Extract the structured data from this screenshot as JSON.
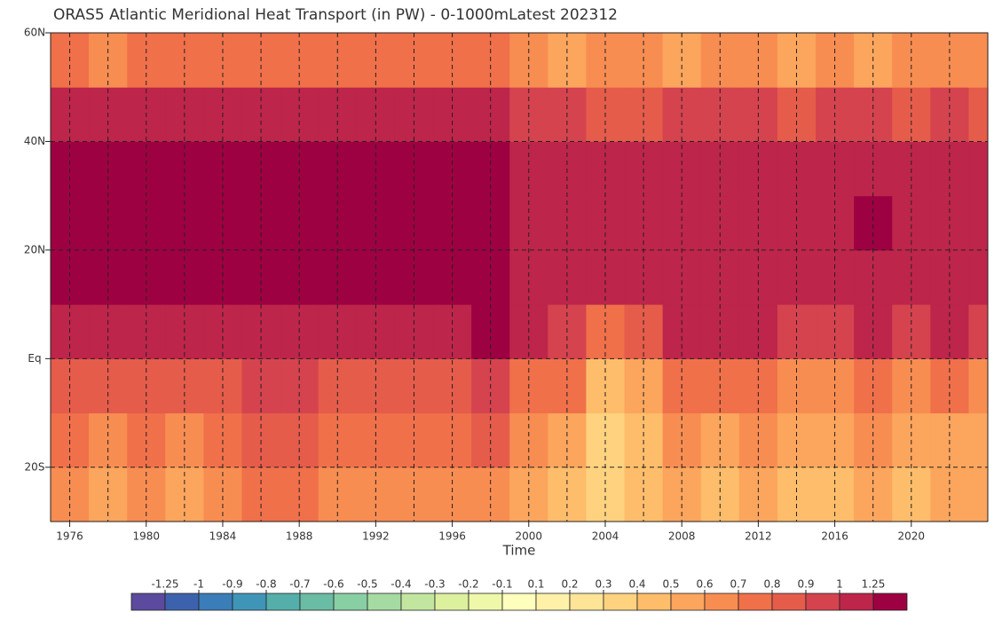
{
  "chart_data": {
    "type": "contour",
    "title": "ORAS5 Atlantic Meridional Heat Transport (in PW) - 0-1000mLatest 202312",
    "x_label": "Time",
    "x": [
      1975,
      1977,
      1979,
      1981,
      1983,
      1985,
      1987,
      1989,
      1991,
      1993,
      1995,
      1997,
      1999,
      2001,
      2003,
      2005,
      2007,
      2009,
      2011,
      2013,
      2015,
      2017,
      2019,
      2021,
      2023
    ],
    "y": [
      -30,
      -20,
      -10,
      0,
      10,
      20,
      30,
      40,
      50
    ],
    "z": [
      [
        0.6,
        0.5,
        0.6,
        0.55,
        0.6,
        0.7,
        0.75,
        0.6,
        0.6,
        0.65,
        0.6,
        0.65,
        0.5,
        0.45,
        0.35,
        0.4,
        0.5,
        0.45,
        0.5,
        0.45,
        0.45,
        0.5,
        0.45,
        0.5,
        0.5
      ],
      [
        0.75,
        0.65,
        0.7,
        0.65,
        0.75,
        0.85,
        0.85,
        0.7,
        0.7,
        0.75,
        0.7,
        0.8,
        0.6,
        0.55,
        0.35,
        0.45,
        0.6,
        0.55,
        0.6,
        0.55,
        0.5,
        0.6,
        0.5,
        0.55,
        0.55
      ],
      [
        0.85,
        0.8,
        0.85,
        0.8,
        0.85,
        0.95,
        0.95,
        0.8,
        0.8,
        0.85,
        0.85,
        0.95,
        0.75,
        0.7,
        0.4,
        0.55,
        0.75,
        0.75,
        0.7,
        0.65,
        0.65,
        0.75,
        0.65,
        0.7,
        0.65
      ],
      [
        1.15,
        1.1,
        1.15,
        1.1,
        1.2,
        1.2,
        1.15,
        1.15,
        1.2,
        1.2,
        1.2,
        1.25,
        1.0,
        0.95,
        0.75,
        0.85,
        1.0,
        1.05,
        1.0,
        0.95,
        0.95,
        1.05,
        0.95,
        1.0,
        0.95
      ],
      [
        1.3,
        1.3,
        1.3,
        1.3,
        1.3,
        1.3,
        1.3,
        1.3,
        1.3,
        1.3,
        1.3,
        1.3,
        1.15,
        1.1,
        1.0,
        1.05,
        1.1,
        1.15,
        1.15,
        1.1,
        1.1,
        1.2,
        1.15,
        1.1,
        1.05
      ],
      [
        1.3,
        1.3,
        1.3,
        1.3,
        1.3,
        1.3,
        1.3,
        1.3,
        1.3,
        1.3,
        1.3,
        1.3,
        1.15,
        1.15,
        1.1,
        1.1,
        1.15,
        1.15,
        1.15,
        1.15,
        1.2,
        1.3,
        1.2,
        1.15,
        1.1
      ],
      [
        1.3,
        1.3,
        1.3,
        1.3,
        1.3,
        1.3,
        1.3,
        1.3,
        1.3,
        1.3,
        1.3,
        1.3,
        1.15,
        1.15,
        1.2,
        1.15,
        1.15,
        1.2,
        1.15,
        1.15,
        1.2,
        1.2,
        1.15,
        1.15,
        1.1
      ],
      [
        1.15,
        1.15,
        1.1,
        1.15,
        1.2,
        1.15,
        1.15,
        1.1,
        1.15,
        1.15,
        1.2,
        1.15,
        0.9,
        0.9,
        0.85,
        0.85,
        0.9,
        0.95,
        0.9,
        0.85,
        0.9,
        0.9,
        0.85,
        0.9,
        0.85
      ],
      [
        0.7,
        0.65,
        0.7,
        0.75,
        0.7,
        0.7,
        0.75,
        0.7,
        0.7,
        0.75,
        0.75,
        0.7,
        0.6,
        0.55,
        0.6,
        0.6,
        0.55,
        0.6,
        0.6,
        0.55,
        0.6,
        0.55,
        0.6,
        0.65,
        0.6
      ]
    ],
    "xlim": [
      1975,
      2024
    ],
    "ylim": [
      -30,
      60
    ],
    "xticks": [
      1976,
      1980,
      1984,
      1988,
      1992,
      1996,
      2000,
      2004,
      2008,
      2012,
      2016,
      2020
    ],
    "yticks": [
      {
        "value": -20,
        "label": "20S"
      },
      {
        "value": 0,
        "label": "Eq"
      },
      {
        "value": 20,
        "label": "20N"
      },
      {
        "value": 40,
        "label": "40N"
      },
      {
        "value": 60,
        "label": "60N"
      }
    ],
    "xgrid_lines": [
      1976,
      1978,
      1980,
      1982,
      1984,
      1986,
      1988,
      1990,
      1992,
      1994,
      1996,
      1998,
      2000,
      2002,
      2004,
      2006,
      2008,
      2010,
      2012,
      2014,
      2016,
      2018,
      2020,
      2022
    ],
    "ygrid_lines": [
      -20,
      0,
      20,
      40
    ],
    "levels": [
      -1.25,
      -1,
      -0.9,
      -0.8,
      -0.7,
      -0.6,
      -0.5,
      -0.4,
      -0.3,
      -0.2,
      -0.1,
      0.1,
      0.2,
      0.3,
      0.4,
      0.5,
      0.6,
      0.7,
      0.8,
      0.9,
      1,
      1.25
    ],
    "colors": [
      "#5b4a9e",
      "#3d62ad",
      "#3a7db8",
      "#3f95b7",
      "#54aeaa",
      "#6abca4",
      "#88cfa4",
      "#a5dba3",
      "#c2e69f",
      "#dcf09e",
      "#eef8a8",
      "#fefebd",
      "#fff1a8",
      "#fee496",
      "#fed27f",
      "#fdbd6a",
      "#fca55d",
      "#f88d52",
      "#f0704a",
      "#e55c4b",
      "#d5434f",
      "#be254b",
      "#9e0142"
    ]
  }
}
